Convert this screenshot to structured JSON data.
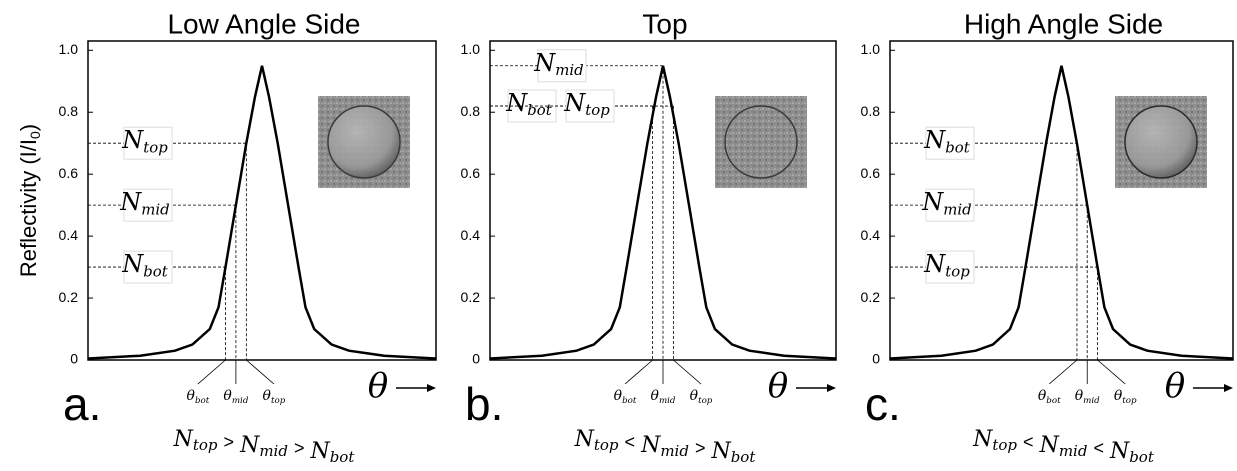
{
  "chart_data": [
    {
      "type": "line",
      "title": "Low Angle Side",
      "panel": "a.",
      "ylabel": {
        "text": "Reflectivity (I/I",
        "sub": "0",
        "tail": ")"
      },
      "xlabel": "θ",
      "x": [
        -1,
        -0.7,
        -0.5,
        -0.4,
        -0.3,
        -0.25,
        -0.21,
        -0.15,
        -0.09,
        -0.04,
        0,
        0.04,
        0.09,
        0.15,
        0.21,
        0.25,
        0.3,
        0.4,
        0.5,
        0.7,
        1
      ],
      "values": [
        0.005,
        0.014,
        0.03,
        0.05,
        0.1,
        0.17,
        0.3,
        0.5,
        0.7,
        0.85,
        0.95,
        0.85,
        0.7,
        0.5,
        0.3,
        0.17,
        0.1,
        0.05,
        0.03,
        0.014,
        0.005
      ],
      "color": "#000000",
      "xlim": [
        -1,
        1
      ],
      "ylim": [
        0,
        1.03
      ],
      "yticks": [
        0,
        0.2,
        0.4,
        0.6,
        0.8,
        {
          "value": 1,
          "label": "1.0"
        }
      ],
      "levels": [
        {
          "text": "N",
          "sub": "top",
          "y": 0.7,
          "x": -0.09
        },
        {
          "text": "N",
          "sub": "mid",
          "y": 0.5,
          "x": -0.15
        },
        {
          "text": "N",
          "sub": "bot",
          "y": 0.3,
          "x": -0.21
        }
      ],
      "angles": [
        {
          "text": "θ",
          "sub": "bot",
          "x": -0.21
        },
        {
          "text": "θ",
          "sub": "mid",
          "x": -0.15
        },
        {
          "text": "θ",
          "sub": "top",
          "x": -0.09
        }
      ],
      "relation": {
        "terms": [
          {
            "text": "N",
            "sub": "top"
          },
          {
            "text": "N",
            "sub": "mid"
          },
          {
            "text": "N",
            "sub": "bot"
          }
        ],
        "ops": [
          ">",
          ">"
        ]
      }
    },
    {
      "type": "line",
      "title": "Top",
      "panel": "b.",
      "xlabel": "θ",
      "x": [
        -1,
        -0.7,
        -0.5,
        -0.4,
        -0.3,
        -0.25,
        -0.21,
        -0.15,
        -0.09,
        -0.04,
        0,
        0.04,
        0.09,
        0.15,
        0.21,
        0.25,
        0.3,
        0.4,
        0.5,
        0.7,
        1
      ],
      "values": [
        0.005,
        0.014,
        0.03,
        0.05,
        0.1,
        0.17,
        0.3,
        0.5,
        0.7,
        0.85,
        0.95,
        0.85,
        0.7,
        0.5,
        0.3,
        0.17,
        0.1,
        0.05,
        0.03,
        0.014,
        0.005
      ],
      "color": "#000000",
      "xlim": [
        -1,
        1
      ],
      "ylim": [
        0,
        1.03
      ],
      "yticks": [
        0,
        0.2,
        0.4,
        0.6,
        0.8,
        {
          "value": 1,
          "label": "1.0"
        }
      ],
      "levels": [
        {
          "text": "N",
          "sub": "mid",
          "y": 0.95,
          "x": 0
        },
        {
          "text": "N",
          "sub": "bot",
          "y": 0.82,
          "x": -0.06
        },
        {
          "text": "N",
          "sub": "top",
          "y": 0.82,
          "x": 0.06
        }
      ],
      "angles": [
        {
          "text": "θ",
          "sub": "bot",
          "x": -0.06
        },
        {
          "text": "θ",
          "sub": "mid",
          "x": 0
        },
        {
          "text": "θ",
          "sub": "top",
          "x": 0.06
        }
      ],
      "relation": {
        "terms": [
          {
            "text": "N",
            "sub": "top"
          },
          {
            "text": "N",
            "sub": "mid"
          },
          {
            "text": "N",
            "sub": "bot"
          }
        ],
        "ops": [
          "<",
          ">"
        ]
      }
    },
    {
      "type": "line",
      "title": "High Angle Side",
      "panel": "c.",
      "xlabel": "θ",
      "x": [
        -1,
        -0.7,
        -0.5,
        -0.4,
        -0.3,
        -0.25,
        -0.21,
        -0.15,
        -0.09,
        -0.04,
        0,
        0.04,
        0.09,
        0.15,
        0.21,
        0.25,
        0.3,
        0.4,
        0.5,
        0.7,
        1
      ],
      "values": [
        0.005,
        0.014,
        0.03,
        0.05,
        0.1,
        0.17,
        0.3,
        0.5,
        0.7,
        0.85,
        0.95,
        0.85,
        0.7,
        0.5,
        0.3,
        0.17,
        0.1,
        0.05,
        0.03,
        0.014,
        0.005
      ],
      "color": "#000000",
      "xlim": [
        -1,
        1
      ],
      "ylim": [
        0,
        1.03
      ],
      "yticks": [
        0,
        0.2,
        0.4,
        0.6,
        0.8,
        {
          "value": 1,
          "label": "1.0"
        }
      ],
      "levels": [
        {
          "text": "N",
          "sub": "bot",
          "y": 0.7,
          "x": 0.09
        },
        {
          "text": "N",
          "sub": "mid",
          "y": 0.5,
          "x": 0.15
        },
        {
          "text": "N",
          "sub": "top",
          "y": 0.3,
          "x": 0.21
        }
      ],
      "angles": [
        {
          "text": "θ",
          "sub": "bot",
          "x": 0.09
        },
        {
          "text": "θ",
          "sub": "mid",
          "x": 0.15
        },
        {
          "text": "θ",
          "sub": "top",
          "x": 0.21
        }
      ],
      "relation": {
        "terms": [
          {
            "text": "N",
            "sub": "top"
          },
          {
            "text": "N",
            "sub": "mid"
          },
          {
            "text": "N",
            "sub": "bot"
          }
        ],
        "ops": [
          "<",
          "<"
        ]
      }
    }
  ]
}
